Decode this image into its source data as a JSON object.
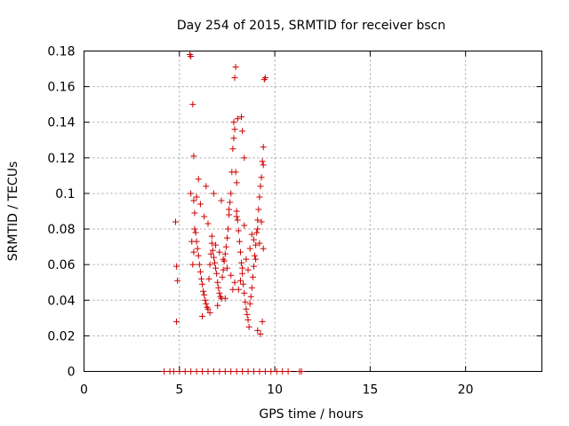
{
  "chart_data": {
    "type": "scatter",
    "title": "Day 254 of 2015, SRMTID for receiver bscn",
    "xlabel": "GPS time / hours",
    "ylabel": "SRMTID / TECUs",
    "xlim": [
      0,
      24
    ],
    "ylim": [
      0,
      0.18
    ],
    "xticks": [
      0,
      5,
      10,
      15,
      20
    ],
    "xtick_labels": [
      "0",
      "5",
      "10",
      "15",
      "20"
    ],
    "yticks": [
      0,
      0.02,
      0.04,
      0.06,
      0.08,
      0.1,
      0.12,
      0.14,
      0.16,
      0.18
    ],
    "ytick_labels": [
      "0",
      "0.02",
      "0.04",
      "0.06",
      "0.08",
      "0.1",
      "0.12",
      "0.14",
      "0.16",
      "0.18"
    ],
    "grid": true,
    "marker": "+",
    "color": "#cc0000",
    "series": [
      {
        "name": "SRMTID",
        "x": [
          4.8,
          4.85,
          4.9,
          4.85,
          5.55,
          5.6,
          5.7,
          5.75,
          5.6,
          5.75,
          5.8,
          5.85,
          5.9,
          5.95,
          6.0,
          6.05,
          6.1,
          6.15,
          6.2,
          6.25,
          6.3,
          6.35,
          6.4,
          6.45,
          6.5,
          6.55,
          6.6,
          6.65,
          6.7,
          6.75,
          6.8,
          6.85,
          6.9,
          6.95,
          7.0,
          7.05,
          7.1,
          7.15,
          7.2,
          7.25,
          7.3,
          7.35,
          7.4,
          7.45,
          7.5,
          7.55,
          7.6,
          7.65,
          7.7,
          7.75,
          7.8,
          7.85,
          7.9,
          7.95,
          8.0,
          8.05,
          8.1,
          8.15,
          8.2,
          8.25,
          8.3,
          8.35,
          8.4,
          8.45,
          8.5,
          8.55,
          8.6,
          8.65,
          8.7,
          8.75,
          8.8,
          8.85,
          8.9,
          8.95,
          9.0,
          9.05,
          9.1,
          9.15,
          9.2,
          9.25,
          9.3,
          9.35,
          9.4,
          9.45,
          9.5,
          5.9,
          6.1,
          6.3,
          6.5,
          6.7,
          6.9,
          7.1,
          7.3,
          7.5,
          7.7,
          7.9,
          8.1,
          8.3,
          8.5,
          8.7,
          8.9,
          9.1,
          9.3,
          6.0,
          6.4,
          6.8,
          7.2,
          7.6,
          8.0,
          8.4,
          8.8,
          9.2,
          6.2,
          6.6,
          7.0,
          7.4,
          7.8,
          8.2,
          8.6,
          9.0,
          9.4,
          7.85,
          7.9,
          7.95,
          8.0,
          8.05,
          8.25,
          8.3,
          8.4,
          9.1,
          9.25,
          9.35,
          9.4,
          5.7,
          5.75,
          5.65,
          5.8,
          4.2,
          4.5,
          4.7,
          5.0,
          5.3,
          5.6,
          5.9,
          6.2,
          6.5,
          6.8,
          7.1,
          7.4,
          7.7,
          8.0,
          8.3,
          8.6,
          8.9,
          9.2,
          9.5,
          9.8,
          10.1,
          10.4,
          10.7,
          11.3,
          11.4
        ],
        "y": [
          0.084,
          0.059,
          0.051,
          0.028,
          0.178,
          0.177,
          0.15,
          0.121,
          0.1,
          0.096,
          0.089,
          0.078,
          0.073,
          0.069,
          0.065,
          0.06,
          0.056,
          0.052,
          0.049,
          0.045,
          0.043,
          0.04,
          0.038,
          0.036,
          0.035,
          0.052,
          0.06,
          0.066,
          0.072,
          0.068,
          0.064,
          0.061,
          0.058,
          0.055,
          0.05,
          0.047,
          0.044,
          0.042,
          0.041,
          0.053,
          0.057,
          0.062,
          0.066,
          0.07,
          0.075,
          0.08,
          0.088,
          0.095,
          0.1,
          0.112,
          0.125,
          0.14,
          0.165,
          0.171,
          0.09,
          0.085,
          0.079,
          0.073,
          0.067,
          0.061,
          0.055,
          0.049,
          0.044,
          0.039,
          0.035,
          0.032,
          0.029,
          0.025,
          0.038,
          0.042,
          0.047,
          0.053,
          0.059,
          0.065,
          0.071,
          0.078,
          0.085,
          0.091,
          0.098,
          0.104,
          0.109,
          0.118,
          0.126,
          0.164,
          0.165,
          0.098,
          0.094,
          0.087,
          0.083,
          0.076,
          0.071,
          0.067,
          0.063,
          0.058,
          0.054,
          0.05,
          0.046,
          0.058,
          0.063,
          0.069,
          0.074,
          0.08,
          0.084,
          0.108,
          0.104,
          0.1,
          0.096,
          0.091,
          0.087,
          0.082,
          0.077,
          0.072,
          0.031,
          0.033,
          0.037,
          0.041,
          0.046,
          0.051,
          0.057,
          0.063,
          0.069,
          0.131,
          0.136,
          0.112,
          0.106,
          0.142,
          0.143,
          0.135,
          0.12,
          0.023,
          0.021,
          0.028,
          0.116,
          0.06,
          0.067,
          0.073,
          0.08,
          0.0,
          0.0,
          0.0,
          0.0,
          0.0,
          0.0,
          0.0,
          0.0,
          0.0,
          0.0,
          0.0,
          0.0,
          0.0,
          0.0,
          0.0,
          0.0,
          0.0,
          0.0,
          0.0,
          0.0,
          0.0,
          0.0,
          0.0,
          0.0,
          0.0
        ]
      }
    ]
  }
}
